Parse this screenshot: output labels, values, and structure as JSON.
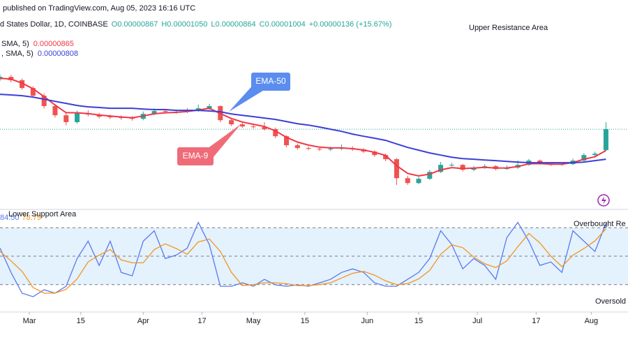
{
  "header": {
    "published": "published on TradingView.com, Aug 05, 2023 16:16 UTC",
    "symbol": "d States Dollar, 1D, COINBASE",
    "ohlc": [
      "O0.00000867",
      "H0.00001050",
      "L0.00000864",
      "C0.00001004",
      "+0.00000136 (+15.67%)"
    ]
  },
  "chart_data": [
    {
      "type": "candlestick",
      "x": [
        0,
        3,
        6,
        9,
        12,
        15,
        18,
        21,
        24,
        27,
        30,
        33,
        36,
        39,
        42,
        45,
        48,
        51,
        54,
        57,
        60,
        63,
        66,
        69,
        72,
        75,
        78,
        81,
        84,
        87,
        90,
        93,
        96,
        99,
        102,
        105,
        108,
        111,
        114,
        117,
        120,
        123,
        126,
        129,
        132,
        135,
        138,
        141,
        144,
        147,
        150,
        153,
        156,
        159,
        162,
        165
      ],
      "open": [
        1.33e-05,
        1.346e-05,
        1.324e-05,
        1.273e-05,
        1.223e-05,
        1.155e-05,
        1.095e-05,
        1.05e-05,
        1.109e-05,
        1.1e-05,
        1.086e-05,
        1.082e-05,
        1.077e-05,
        1.072e-05,
        1.104e-05,
        1.123e-05,
        1.118e-05,
        1.118e-05,
        1.127e-05,
        1.141e-05,
        1.155e-05,
        1.063e-05,
        1.036e-05,
        1.022e-05,
        1.018e-05,
        1.004e-05,
        9.58e-06,
        8.99e-06,
        8.81e-06,
        8.76e-06,
        8.72e-06,
        8.76e-06,
        8.81e-06,
        8.72e-06,
        8.58e-06,
        8.35e-06,
        8.08e-06,
        6.84e-06,
        6.52e-06,
        6.8e-06,
        7.25e-06,
        7.71e-06,
        7.71e-06,
        7.39e-06,
        7.53e-06,
        7.62e-06,
        7.44e-06,
        7.53e-06,
        7.71e-06,
        7.99e-06,
        7.8e-06,
        7.71e-06,
        7.76e-06,
        7.99e-06,
        8.35e-06,
        8.67e-06
      ],
      "high": [
        1.362e-05,
        1.36e-05,
        1.335e-05,
        1.285e-05,
        1.238e-05,
        1.17e-05,
        1.11e-05,
        1.125e-05,
        1.128e-05,
        1.112e-05,
        1.098e-05,
        1.094e-05,
        1.09e-05,
        1.12e-05,
        1.14e-05,
        1.135e-05,
        1.13e-05,
        1.142e-05,
        1.165e-05,
        1.17e-05,
        1.16e-05,
        1.075e-05,
        1.048e-05,
        1.04e-05,
        1.05e-05,
        1.015e-05,
        9.65e-06,
        9.1e-06,
        8.92e-06,
        8.88e-06,
        8.9e-06,
        9.05e-06,
        8.92e-06,
        8.8e-06,
        8.66e-06,
        8.45e-06,
        8.15e-06,
        7e-06,
        6.92e-06,
        7.38e-06,
        7.9e-06,
        7.85e-06,
        7.78e-06,
        7.65e-06,
        7.75e-06,
        7.7e-06,
        7.68e-06,
        8e-06,
        8.1e-06,
        8.06e-06,
        7.88e-06,
        7.86e-06,
        8.12e-06,
        8.48e-06,
        8.58e-06,
        1.05e-05
      ],
      "low": [
        1.318e-05,
        1.31e-05,
        1.262e-05,
        1.208e-05,
        1.14e-05,
        1.08e-05,
        1.03e-05,
        1.04e-05,
        1.088e-05,
        1.074e-05,
        1.07e-05,
        1.066e-05,
        1.06e-05,
        1.062e-05,
        1.095e-05,
        1.106e-05,
        1.105e-05,
        1.11e-05,
        1.118e-05,
        1.13e-05,
        1.05e-05,
        1.025e-05,
        1.012e-05,
        1.008e-05,
        9.95e-06,
        9.45e-06,
        8.85e-06,
        8.7e-06,
        8.66e-06,
        8.62e-06,
        8.62e-06,
        8.68e-06,
        8.62e-06,
        8.48e-06,
        8.24e-06,
        7.95e-06,
        6.4e-06,
        6.4e-06,
        6.45e-06,
        6.72e-06,
        7.18e-06,
        7.6e-06,
        7.28e-06,
        7.3e-06,
        7.45e-06,
        7.35e-06,
        7.38e-06,
        7.45e-06,
        7.65e-06,
        7.72e-06,
        7.64e-06,
        7.65e-06,
        7.7e-06,
        7.92e-06,
        8.28e-06,
        8.64e-06
      ],
      "close": [
        1.346e-05,
        1.324e-05,
        1.273e-05,
        1.223e-05,
        1.155e-05,
        1.095e-05,
        1.05e-05,
        1.109e-05,
        1.1e-05,
        1.086e-05,
        1.082e-05,
        1.077e-05,
        1.072e-05,
        1.104e-05,
        1.123e-05,
        1.118e-05,
        1.118e-05,
        1.127e-05,
        1.141e-05,
        1.155e-05,
        1.063e-05,
        1.036e-05,
        1.022e-05,
        1.018e-05,
        1.004e-05,
        9.58e-06,
        8.99e-06,
        8.81e-06,
        8.76e-06,
        8.72e-06,
        8.76e-06,
        8.81e-06,
        8.72e-06,
        8.58e-06,
        8.35e-06,
        8.08e-06,
        6.84e-06,
        6.52e-06,
        6.8e-06,
        7.25e-06,
        7.71e-06,
        7.71e-06,
        7.39e-06,
        7.53e-06,
        7.62e-06,
        7.44e-06,
        7.53e-06,
        7.71e-06,
        7.99e-06,
        7.8e-06,
        7.71e-06,
        7.76e-06,
        7.99e-06,
        8.35e-06,
        8.44e-06,
        1.004e-05
      ],
      "up_color": "#26a69a",
      "down_color": "#ef5350",
      "xlim": [
        0,
        171
      ],
      "ylim": [
        4.8e-06,
        1.757e-05
      ],
      "xticks": [
        {
          "value": 8,
          "label": "Mar"
        },
        {
          "value": 22,
          "label": "15"
        },
        {
          "value": 39,
          "label": "Apr"
        },
        {
          "value": 55,
          "label": "17"
        },
        {
          "value": 69,
          "label": "May"
        },
        {
          "value": 83,
          "label": "15"
        },
        {
          "value": 100,
          "label": "Jun"
        },
        {
          "value": 114,
          "label": "15"
        },
        {
          "value": 130,
          "label": "Jul"
        },
        {
          "value": 146,
          "label": "17"
        },
        {
          "value": 161,
          "label": "Aug"
        }
      ],
      "series": [
        {
          "name": "SMA, 5)",
          "color": "#f23645",
          "values": [
            1.337e-05,
            1.331e-05,
            1.305e-05,
            1.268e-05,
            1.217e-05,
            1.162e-05,
            1.112e-05,
            1.111e-05,
            1.106e-05,
            1.097e-05,
            1.09e-05,
            1.084e-05,
            1.079e-05,
            1.09e-05,
            1.105e-05,
            1.111e-05,
            1.114e-05,
            1.12e-05,
            1.129e-05,
            1.141e-05,
            1.106e-05,
            1.074e-05,
            1.051e-05,
            1.036e-05,
            1.022e-05,
            9.93e-06,
            9.51e-06,
            9.2e-06,
            9e-06,
            8.87e-06,
            8.82e-06,
            8.82e-06,
            8.77e-06,
            8.68e-06,
            8.53e-06,
            8.33e-06,
            7.66e-06,
            7.15e-06,
            6.99e-06,
            7.11e-06,
            7.38e-06,
            7.53e-06,
            7.47e-06,
            7.5e-06,
            7.55e-06,
            7.5e-06,
            7.51e-06,
            7.6e-06,
            7.78e-06,
            7.79e-06,
            7.75e-06,
            7.75e-06,
            7.86e-06,
            8.08e-06,
            8.24e-06,
            8.65e-06
          ]
        },
        {
          "name": ", SMA, 5)",
          "color": "#3b3fd8",
          "values": [
            1.232e-05,
            1.228e-05,
            1.223e-05,
            1.214e-05,
            1.2e-05,
            1.186e-05,
            1.173e-05,
            1.159e-05,
            1.15e-05,
            1.146e-05,
            1.141e-05,
            1.141e-05,
            1.141e-05,
            1.136e-05,
            1.132e-05,
            1.132e-05,
            1.127e-05,
            1.127e-05,
            1.127e-05,
            1.123e-05,
            1.118e-05,
            1.104e-05,
            1.095e-05,
            1.086e-05,
            1.077e-05,
            1.068e-05,
            1.054e-05,
            1.04e-05,
            1.031e-05,
            1.018e-05,
            1.004e-05,
            9.9e-06,
            9.72e-06,
            9.58e-06,
            9.45e-06,
            9.31e-06,
            9.08e-06,
            8.85e-06,
            8.67e-06,
            8.49e-06,
            8.35e-06,
            8.21e-06,
            8.12e-06,
            8.08e-06,
            8.03e-06,
            7.99e-06,
            7.94e-06,
            7.89e-06,
            7.85e-06,
            7.85e-06,
            7.85e-06,
            7.85e-06,
            7.85e-06,
            7.89e-06,
            7.99e-06,
            8.08e-06
          ]
        }
      ],
      "annotations": {
        "resistance": "Upper Resistance Area",
        "ema50": "EMA-50",
        "ema9": "EMA-9"
      }
    },
    {
      "type": "line",
      "x": [
        0,
        3,
        6,
        9,
        12,
        15,
        18,
        21,
        24,
        27,
        30,
        33,
        36,
        39,
        42,
        45,
        48,
        51,
        54,
        57,
        60,
        63,
        66,
        69,
        72,
        75,
        78,
        81,
        84,
        87,
        90,
        93,
        96,
        99,
        102,
        105,
        108,
        111,
        114,
        117,
        120,
        123,
        126,
        129,
        132,
        135,
        138,
        141,
        144,
        147,
        150,
        153,
        156,
        159,
        162,
        165
      ],
      "xlim": [
        0,
        171
      ],
      "ylim": [
        0,
        100
      ],
      "levels": [
        80,
        50,
        20
      ],
      "top_label": "Overbought Re",
      "bottom_label": "Oversold",
      "support_label": "Lower Support Area",
      "series": [
        {
          "label": "84.50",
          "color": "#5b78f0",
          "values": [
            58.5,
            32.9,
            11.0,
            7.3,
            14.6,
            11.0,
            18.3,
            47.5,
            65.8,
            40.2,
            65.8,
            32.9,
            29.3,
            65.8,
            76.8,
            47.5,
            51.2,
            58.5,
            85.6,
            62.2,
            18.3,
            18.3,
            21.9,
            18.3,
            25.6,
            19.8,
            18.3,
            19.8,
            18.3,
            21.9,
            25.6,
            32.9,
            36.6,
            32.9,
            21.9,
            18.3,
            18.3,
            25.6,
            32.9,
            47.5,
            76.8,
            62.2,
            36.6,
            47.5,
            40.2,
            25.6,
            69.5,
            85.6,
            65.8,
            40.2,
            43.9,
            32.9,
            76.8,
            65.8,
            54.9,
            84.5
          ]
        },
        {
          "label": "78.79",
          "color": "#f7931e",
          "values": [
            55,
            45,
            34,
            17,
            11,
            11,
            15,
            26,
            44,
            51,
            57,
            46,
            43,
            43,
            57,
            63,
            58,
            52,
            65,
            68,
            55,
            33,
            19,
            20,
            22,
            22,
            21,
            19,
            19,
            20,
            22,
            27,
            32,
            34,
            30,
            24,
            20,
            21,
            26,
            35,
            52,
            62,
            59,
            49,
            42,
            38,
            45,
            60,
            74,
            64,
            50,
            39,
            51,
            58,
            66,
            78.79
          ]
        }
      ]
    }
  ]
}
